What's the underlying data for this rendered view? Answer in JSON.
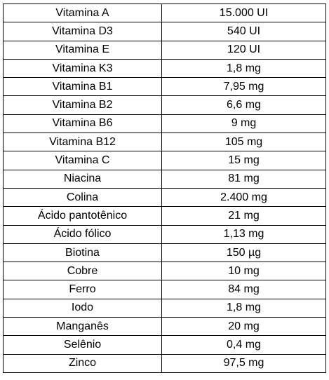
{
  "table": {
    "rows": [
      {
        "name": "Vitamina A",
        "amount": "15.000 UI"
      },
      {
        "name": "Vitamina D3",
        "amount": "540 UI"
      },
      {
        "name": "Vitamina E",
        "amount": "120 UI"
      },
      {
        "name": "Vitamina K3",
        "amount": "1,8 mg"
      },
      {
        "name": "Vitamina B1",
        "amount": "7,95 mg"
      },
      {
        "name": "Vitamina B2",
        "amount": "6,6 mg"
      },
      {
        "name": "Vitamina B6",
        "amount": "9 mg"
      },
      {
        "name": "Vitamina B12",
        "amount": "105 mg"
      },
      {
        "name": "Vitamina C",
        "amount": "15 mg"
      },
      {
        "name": "Niacina",
        "amount": "81 mg"
      },
      {
        "name": "Colina",
        "amount": "2.400 mg"
      },
      {
        "name": "Ácido pantotênico",
        "amount": "21 mg"
      },
      {
        "name": "Ácido fólico",
        "amount": "1,13 mg"
      },
      {
        "name": "Biotina",
        "amount": "150 µg"
      },
      {
        "name": "Cobre",
        "amount": "10 mg"
      },
      {
        "name": "Ferro",
        "amount": "84 mg"
      },
      {
        "name": "Iodo",
        "amount": "1,8 mg"
      },
      {
        "name": "Manganês",
        "amount": "20 mg"
      },
      {
        "name": "Selênio",
        "amount": "0,4 mg"
      },
      {
        "name": "Zinco",
        "amount": "97,5 mg"
      }
    ]
  }
}
